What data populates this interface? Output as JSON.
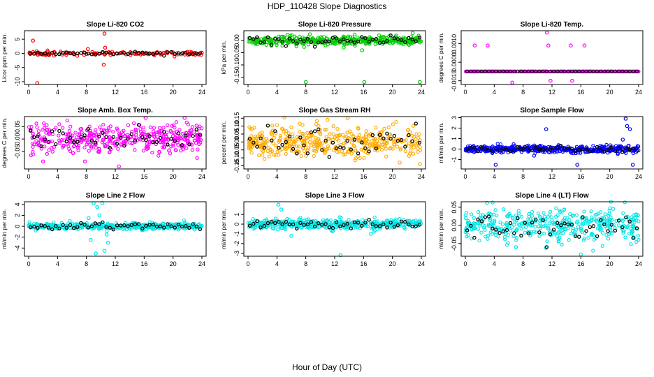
{
  "figure": {
    "title": "HDP_110428  Slope Diagnostics",
    "xlabel": "Hour of Day (UTC)",
    "marker_color": "#000000"
  },
  "chart_data": [
    {
      "type": "scatter",
      "title": "Slope Li-820 CO2",
      "ylabel": "Licor ppm per min.",
      "color": "#ff0000",
      "xlim": [
        0,
        24
      ],
      "ylim": [
        -11,
        8
      ],
      "xticks": [
        "0",
        "4",
        "8",
        "12",
        "16",
        "20",
        "24"
      ],
      "yticks": [
        -10,
        -5,
        0,
        5
      ],
      "spread": 0.4,
      "outliers": [
        [
          0.6,
          4.5
        ],
        [
          1.2,
          -10.5
        ],
        [
          10.5,
          7
        ],
        [
          10.6,
          2
        ],
        [
          10.4,
          -4
        ],
        [
          8.2,
          1.5
        ]
      ]
    },
    {
      "type": "scatter",
      "title": "Slope Li-820 Pressure",
      "ylabel": "kPa per min.",
      "color": "#00cc00",
      "xlim": [
        0,
        24
      ],
      "ylim": [
        -0.18,
        0.04
      ],
      "xticks": [
        "0",
        "4",
        "8",
        "12",
        "16",
        "20",
        "24"
      ],
      "yticks": [
        0.0,
        -0.05,
        -0.1,
        -0.15
      ],
      "yticklabels": [
        "0.00",
        "-0.05",
        "-0.10",
        "-0.15"
      ],
      "spread": 0.012,
      "outliers": [
        [
          8.0,
          -0.17
        ],
        [
          16.1,
          -0.17
        ],
        [
          23.8,
          -0.17
        ],
        [
          15.8,
          -0.04
        ],
        [
          22.8,
          0.03
        ]
      ]
    },
    {
      "type": "scatter",
      "title": "Slope Li-820 Temp.",
      "ylabel": "degrees C per min.",
      "color": "#ff00ff",
      "xlim": [
        0,
        24
      ],
      "ylim": [
        -0.0012,
        0.0017
      ],
      "xticks": [
        "0",
        "4",
        "8",
        "12",
        "16",
        "20",
        "24"
      ],
      "yticks": [
        -0.001,
        0.0,
        0.001
      ],
      "yticklabels": [
        "-0.0010",
        "0.0000",
        "0.0010"
      ],
      "spread": 0,
      "baseline": -0.0005,
      "outliers": [
        [
          1.3,
          0.0009
        ],
        [
          3.1,
          0.0009
        ],
        [
          6.5,
          -0.0011
        ],
        [
          11.5,
          0.0009
        ],
        [
          11.8,
          -0.001
        ],
        [
          11.3,
          0.0016
        ],
        [
          14.6,
          0.0009
        ],
        [
          14.8,
          -0.001
        ],
        [
          16.5,
          0.0009
        ]
      ]
    },
    {
      "type": "scatter",
      "title": "Slope Amb. Box Temp.",
      "ylabel": "degrees C per min.",
      "color": "#ff00ff",
      "xlim": [
        0,
        24
      ],
      "ylim": [
        -0.12,
        0.09
      ],
      "xticks": [
        "0",
        "4",
        "8",
        "12",
        "16",
        "20",
        "24"
      ],
      "yticks": [
        -0.05,
        0.0,
        0.05
      ],
      "yticklabels": [
        "-0.05",
        "0.00",
        "0.05"
      ],
      "spread": 0.035,
      "outliers": [
        [
          12.5,
          -0.11
        ],
        [
          2.0,
          -0.09
        ],
        [
          7.8,
          -0.09
        ],
        [
          16.2,
          0.085
        ],
        [
          21.6,
          0.085
        ]
      ]
    },
    {
      "type": "scatter",
      "title": "Slope Gas Stream RH",
      "ylabel": "percent per min.",
      "color": "#ffaa00",
      "xlim": [
        0,
        24
      ],
      "ylim": [
        -0.17,
        0.16
      ],
      "xticks": [
        "0",
        "4",
        "8",
        "12",
        "16",
        "20",
        "24"
      ],
      "yticks": [
        -0.15,
        -0.1,
        -0.05,
        0.0,
        0.05,
        0.1,
        0.15
      ],
      "yticklabels": [
        "-0.15",
        "-0.10",
        "-0.05",
        "0.00",
        "0.05",
        "0.10",
        "0.15"
      ],
      "spread": 0.06,
      "outliers": [
        [
          11.0,
          0.14
        ],
        [
          13.8,
          0.15
        ],
        [
          23.8,
          -0.14
        ],
        [
          21.0,
          -0.13
        ]
      ]
    },
    {
      "type": "scatter",
      "title": "Slope Sample Flow",
      "ylabel": "ml/min per min.",
      "color": "#0000ff",
      "xlim": [
        0,
        24
      ],
      "ylim": [
        -1.9,
        3.1
      ],
      "xticks": [
        "0",
        "4",
        "8",
        "12",
        "16",
        "20",
        "24"
      ],
      "yticks": [
        -1,
        0,
        1,
        2,
        3
      ],
      "spread": 0.22,
      "outliers": [
        [
          22.2,
          2.9
        ],
        [
          22.4,
          2.2
        ],
        [
          22.8,
          1.9
        ],
        [
          4.2,
          -1.5
        ],
        [
          15.5,
          -1.5
        ],
        [
          11.2,
          1.9
        ],
        [
          21.8,
          0.9
        ],
        [
          23.2,
          -1.5
        ]
      ]
    },
    {
      "type": "scatter",
      "title": "Slope Line 2 Flow",
      "ylabel": "ml/min per min.",
      "color": "#00e5e5",
      "xlim": [
        0,
        24
      ],
      "ylim": [
        -5.5,
        4.5
      ],
      "xticks": [
        "0",
        "4",
        "8",
        "12",
        "16",
        "20",
        "24"
      ],
      "yticks": [
        -4,
        -2,
        0,
        2,
        4
      ],
      "spread": 0.35,
      "outliers": [
        [
          9.0,
          4.2
        ],
        [
          9.5,
          3.5
        ],
        [
          10.2,
          4.3
        ],
        [
          8.6,
          -2.5
        ],
        [
          9.3,
          -5.0
        ],
        [
          10.5,
          -4.5
        ],
        [
          11.0,
          -3.0
        ],
        [
          9.8,
          2.0
        ],
        [
          8.3,
          1.5
        ],
        [
          10.8,
          -1.5
        ]
      ]
    },
    {
      "type": "scatter",
      "title": "Slope Line 3 Flow",
      "ylabel": "ml/min per min.",
      "color": "#00e5e5",
      "xlim": [
        0,
        24
      ],
      "ylim": [
        -3.3,
        2.3
      ],
      "xticks": [
        "0",
        "4",
        "8",
        "12",
        "16",
        "20",
        "24"
      ],
      "yticks": [
        -3,
        -2,
        -1,
        0,
        1
      ],
      "spread": 0.3,
      "outliers": [
        [
          4.2,
          2.0
        ],
        [
          4.6,
          1.5
        ],
        [
          12.8,
          -3.2
        ],
        [
          6.0,
          -1.2
        ],
        [
          17.0,
          -1.0
        ]
      ]
    },
    {
      "type": "scatter",
      "title": "Slope Line 4 (LT) Flow",
      "ylabel": "ml/min per min.",
      "color": "#00e5e5",
      "xlim": [
        0,
        24
      ],
      "ylim": [
        -0.085,
        0.065
      ],
      "xticks": [
        "0",
        "4",
        "8",
        "12",
        "16",
        "20",
        "24"
      ],
      "yticks": [
        -0.05,
        0.0,
        0.05
      ],
      "yticklabels": [
        "-0.05",
        "0.00",
        "0.05"
      ],
      "spread": 0.028,
      "outliers": [
        [
          3.0,
          0.062
        ],
        [
          16.0,
          -0.08
        ],
        [
          7.0,
          -0.06
        ]
      ]
    }
  ]
}
